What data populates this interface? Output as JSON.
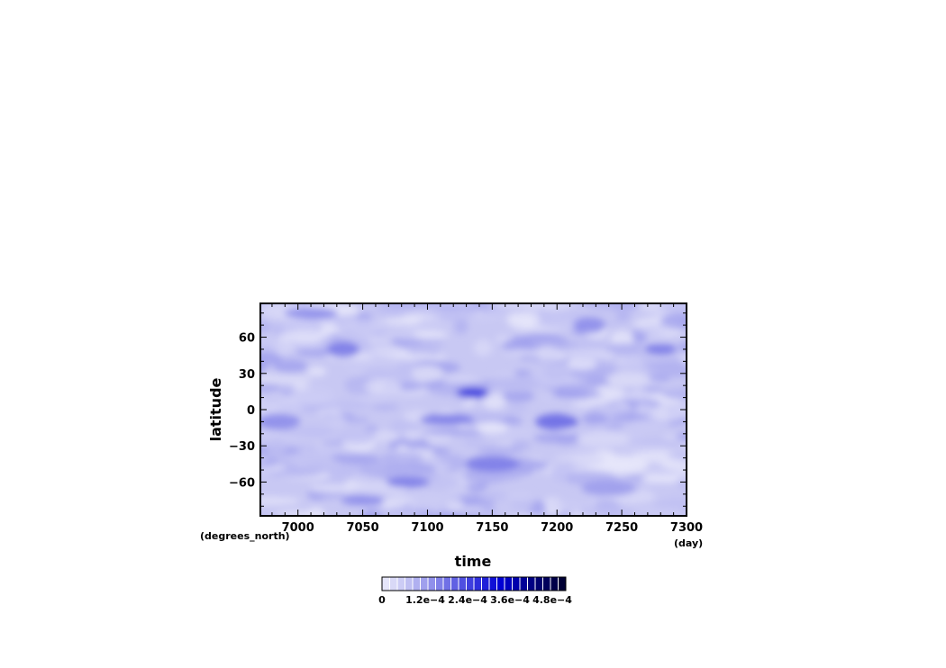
{
  "chart_data": {
    "type": "heatmap",
    "xlabel": "time",
    "ylabel": "latitude",
    "x_unit": "(day)",
    "y_unit": "(degrees_north)",
    "xlim": [
      6971,
      7300
    ],
    "ylim": [
      -88,
      88
    ],
    "x_ticks": [
      7000,
      7050,
      7100,
      7150,
      7200,
      7250,
      7300
    ],
    "y_ticks": [
      -60,
      -30,
      0,
      30,
      60
    ],
    "x_tick_labels": [
      "7000",
      "7050",
      "7100",
      "7150",
      "7200",
      "7250",
      "7300"
    ],
    "y_tick_labels": [
      "−60",
      "−30",
      "0",
      "30",
      "60"
    ],
    "colorbar": {
      "range": [
        0,
        0.00054
      ],
      "tick_labels": [
        "0",
        "1.2e−4",
        "2.4e−4",
        "3.6e−4",
        "4.8e−4"
      ],
      "colors": [
        "#e6e6fa",
        "#d9d9f7",
        "#ccccf5",
        "#bfbff2",
        "#b0b0f0",
        "#a0a0ed",
        "#9090eb",
        "#8080e8",
        "#7070e6",
        "#6060e3",
        "#4f4fe1",
        "#3f3fde",
        "#2f2fdc",
        "#1f1fd9",
        "#0f0fd7",
        "#0000d4",
        "#0000c0",
        "#0000ac",
        "#000098",
        "#000084",
        "#000070",
        "#00005c",
        "#000048",
        "#000034"
      ]
    },
    "features": [
      {
        "x": 7135,
        "y": 14,
        "value": 0.00026
      },
      {
        "x": 7200,
        "y": -10,
        "value": 0.00019
      },
      {
        "x": 7115,
        "y": -8,
        "value": 0.00017
      },
      {
        "x": 7035,
        "y": 50,
        "value": 0.00016
      },
      {
        "x": 7085,
        "y": -60,
        "value": 0.00017
      },
      {
        "x": 7150,
        "y": -45,
        "value": 0.00016
      },
      {
        "x": 7280,
        "y": 50,
        "value": 0.00016
      },
      {
        "x": 6985,
        "y": -10,
        "value": 0.00015
      },
      {
        "x": 7010,
        "y": 80,
        "value": 0.00014
      },
      {
        "x": 7225,
        "y": 70,
        "value": 0.00014
      },
      {
        "x": 7050,
        "y": -75,
        "value": 0.00014
      },
      {
        "x": 7240,
        "y": -65,
        "value": 0.00013
      },
      {
        "x": 7150,
        "y": -15,
        "value": 2e-05
      },
      {
        "x": 7255,
        "y": 25,
        "value": 3e-05
      },
      {
        "x": 6990,
        "y": 25,
        "value": 3e-05
      },
      {
        "x": 7100,
        "y": 30,
        "value": 4e-05
      }
    ]
  }
}
